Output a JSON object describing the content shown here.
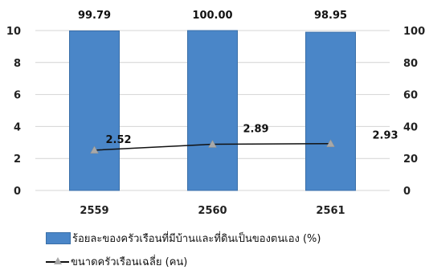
{
  "chart_data": {
    "type": "bar",
    "categories": [
      "2559",
      "2560",
      "2561"
    ],
    "series": [
      {
        "name": "ร้อยละของครัวเรือนที่มีบ้านและที่ดินเป็นของตนเอง (%)",
        "type": "bar",
        "axis": "right",
        "values": [
          99.79,
          100.0,
          98.95
        ],
        "labels": [
          "99.79",
          "100.00",
          "98.95"
        ],
        "color": "#4a86c8"
      },
      {
        "name": "ขนาดครัวเรือนเฉลี่ย (คน)",
        "type": "line",
        "axis": "left",
        "values": [
          2.52,
          2.89,
          2.93
        ],
        "labels": [
          "2.52",
          "2.89",
          "2.93"
        ],
        "color": "#111111",
        "marker_color": "#a8a8a8"
      }
    ],
    "y_left": {
      "ylim": [
        0,
        10
      ],
      "ticks": [
        "0",
        "2",
        "4",
        "6",
        "8",
        "10"
      ]
    },
    "y_right": {
      "ylim": [
        0,
        100
      ],
      "ticks": [
        "0",
        "20",
        "40",
        "60",
        "80",
        "100"
      ]
    },
    "grid": true,
    "legend": "bottom-left"
  }
}
